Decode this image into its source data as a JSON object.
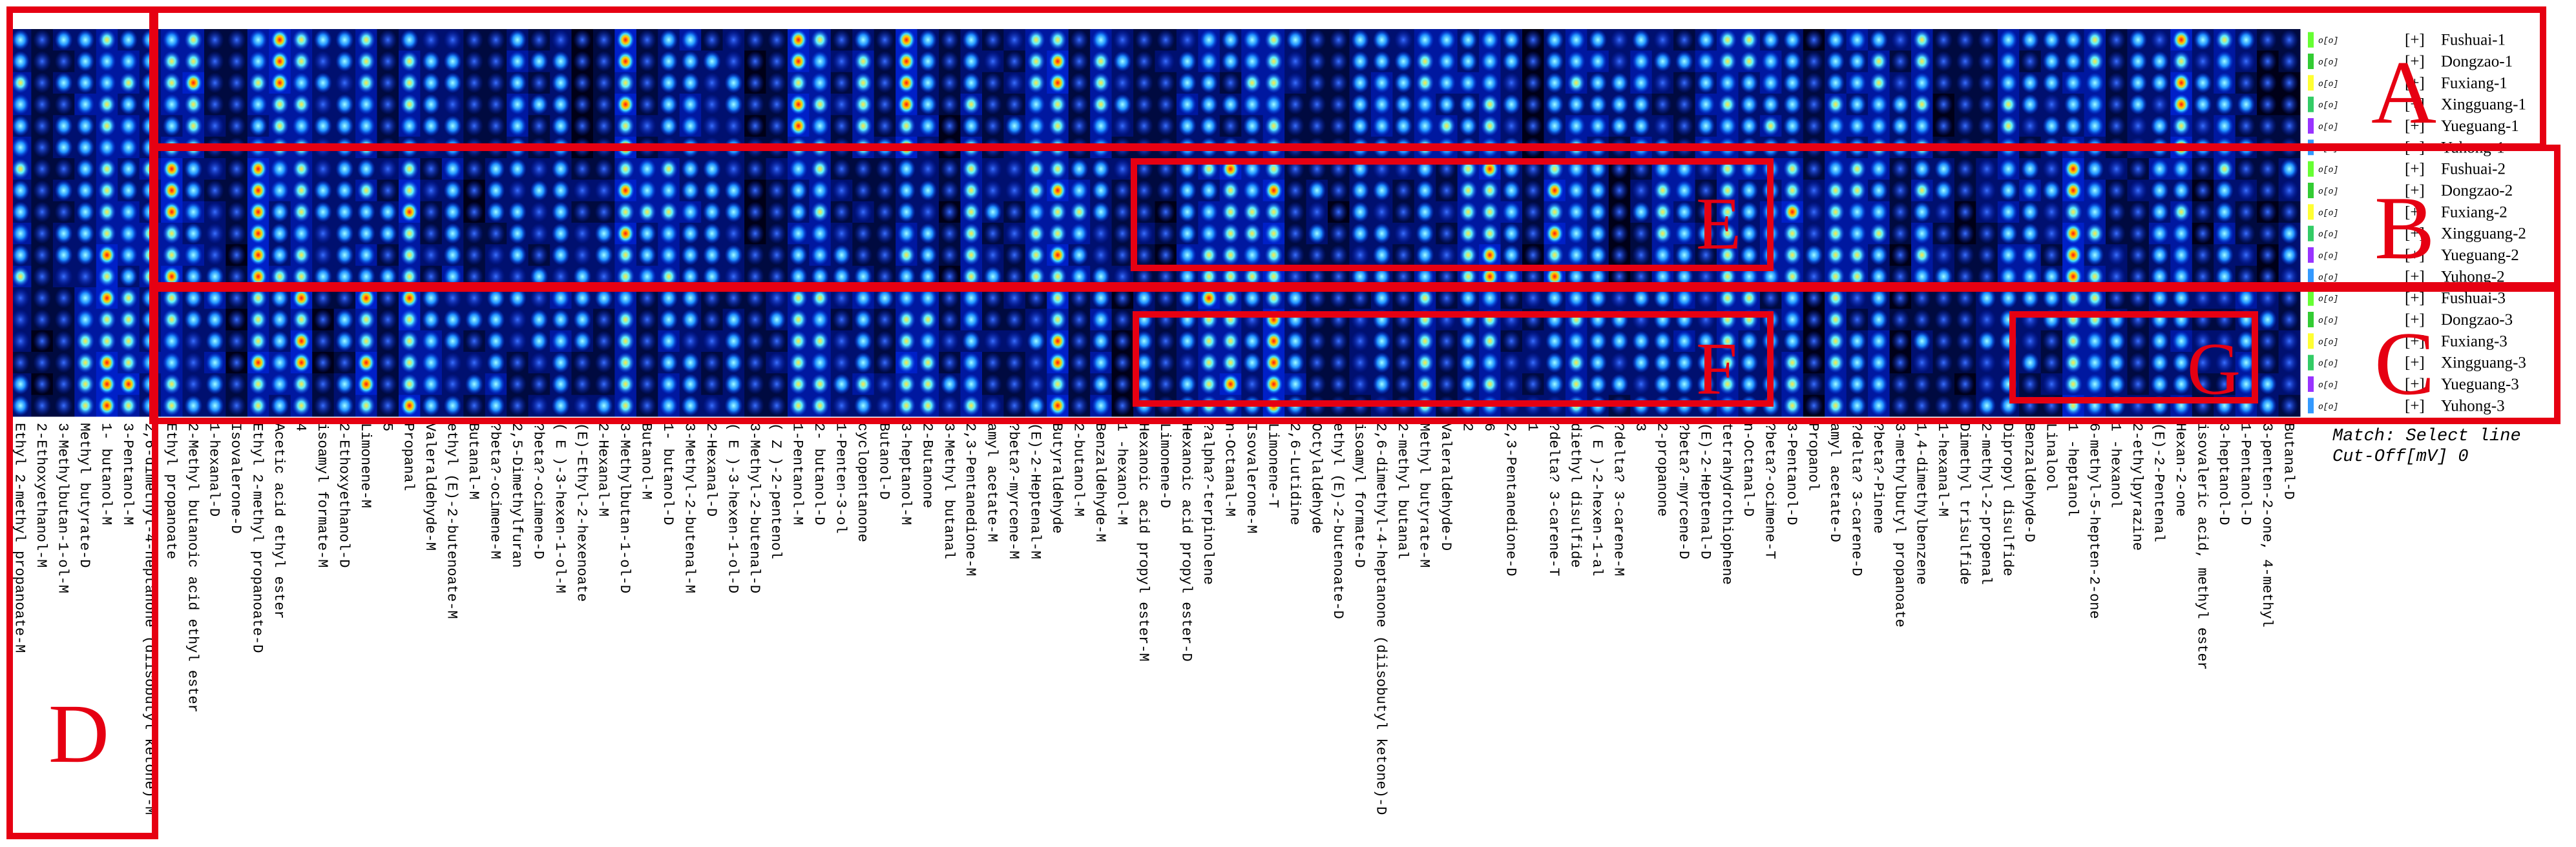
{
  "samples": [
    "Fushuai-1",
    "Dongzao-1",
    "Fuxiang-1",
    "Xingguang-1",
    "Yueguang-1",
    "Yuhong-1",
    "Fushuai-2",
    "Dongzao-2",
    "Fuxiang-2",
    "Xingguang-2",
    "Yueguang-2",
    "Yuhong-2",
    "Fushuai-3",
    "Dongzao-3",
    "Fuxiang-3",
    "Xingguang-3",
    "Yueguang-3",
    "Yuhong-3"
  ],
  "sample_colors": [
    "#66ff33",
    "#33cc33",
    "#ffff33",
    "#33cc66",
    "#9933ff",
    "#3399ff"
  ],
  "legend_prefix": "[+]",
  "legend_marker": "o[o]",
  "compounds": [
    "Ethyl 2-methyl propanoate-M",
    "2-Ethoxyethanol-M",
    "3-Methylbutan-1-ol-M",
    "Methyl butyrate-D",
    "1- butanol-M",
    "3-Pentanol-M",
    "2,6-dimethyl-4-heptanone (diisobutyl ketone)-M",
    "Ethyl propanoate",
    "2-Methyl butanoic acid ethyl ester",
    "1-hexanal-D",
    "Isovalerone-D",
    "Ethyl 2-methyl propanoate-D",
    "Acetic acid ethyl ester",
    "4",
    "isoamyl formate-M",
    "2-Ethoxyethanol-D",
    "Limonene-M",
    "5",
    "Propanal",
    "Valeraldehyde-M",
    "ethyl (E)-2-butenoate-M",
    "Butanal-M",
    "?beta?-ocimene-M",
    "2,5-Dimethylfuran",
    "?beta?-ocimene-D",
    "( E )-3-hexen-1-ol-M",
    "(E)-Ethyl-2-hexenoate",
    "2-Hexanal-M",
    "3-Methylbutan-1-ol-D",
    "Butanol-M",
    "1- butanol-D",
    "3-Methyl-2-butenal-M",
    "2-Hexanal-D",
    "( E )-3-hexen-1-ol-D",
    "3-Methyl-2-butenal-D",
    "( Z )-2-pentenol",
    "1-Pentanol-M",
    "2- butanol-D",
    "1-Penten-3-ol",
    "cyclopentanone",
    "Butanol-D",
    "3-heptanol-M",
    "2-Butanone",
    "3-Methyl butanal",
    "2,3-Pentanedione-M",
    "amyl acetate-M",
    "?beta?-myrcene-M",
    "(E)-2-Heptenal-M",
    "Butyraldehyde",
    "2-butanol-M",
    "Benzaldehyde-M",
    "1 -hexanol-M",
    "Hexanoic acid propyl ester-M",
    "Limonene-D",
    "Hexanoic acid propyl ester-D",
    "?alpha?-terpinolene",
    "n-Octanal-M",
    "Isovalerone-M",
    "Limonene-T",
    "2,6-Lutidine",
    "Octylaldehyde",
    "ethyl (E)-2-butenoate-D",
    "isoamyl formate-D",
    "2,6-dimethyl-4-heptanone (diisobutyl ketone)-D",
    "2-methyl butanal",
    "Methyl butyrate-M",
    "Valeraldehyde-D",
    "2",
    "6",
    "2,3-Pentanedione-D",
    "1",
    "?delta? 3-carene-T",
    "diethyl disulfide",
    "( E )-2-hexen-1-al",
    "?delta? 3-carene-M",
    "3",
    "2-propanone",
    "?beta?-myrcene-D",
    "(E)-2-Heptenal-D",
    "tetrahydrothiophene",
    "n-Octanal-D",
    "?beta?-ocimene-T",
    "3-Pentanol-D",
    "Propanol",
    "amyl acetate-D",
    "?delta? 3-carene-D",
    "?beta?-Pinene",
    "3-methylbutyl propanoate",
    "1,4-dimethylbenzene",
    "1-hexanal-M",
    "Dimethyl trisulfide",
    "2-methyl-2-propenal",
    "Dipropyl disulfide",
    "Benzaldehyde-D",
    "Linalool",
    "1 -heptanol",
    "6-methyl-5-hepten-2-one",
    "1 -hexanol",
    "2-ethylpyrazine",
    "(E)-2-Pentenal",
    "Hexan-2-one",
    "isovaleric acid, methyl ester",
    "3-heptanol-D",
    "1-Pentanol-D",
    "3-penten-2-one, 4-methyl",
    "Butanal-D"
  ],
  "region_labels": [
    "A",
    "B",
    "C",
    "D",
    "E",
    "F",
    "G"
  ],
  "match_text": "Match: Select line",
  "cutoff_text": "Cut-Off[mV] 0"
}
